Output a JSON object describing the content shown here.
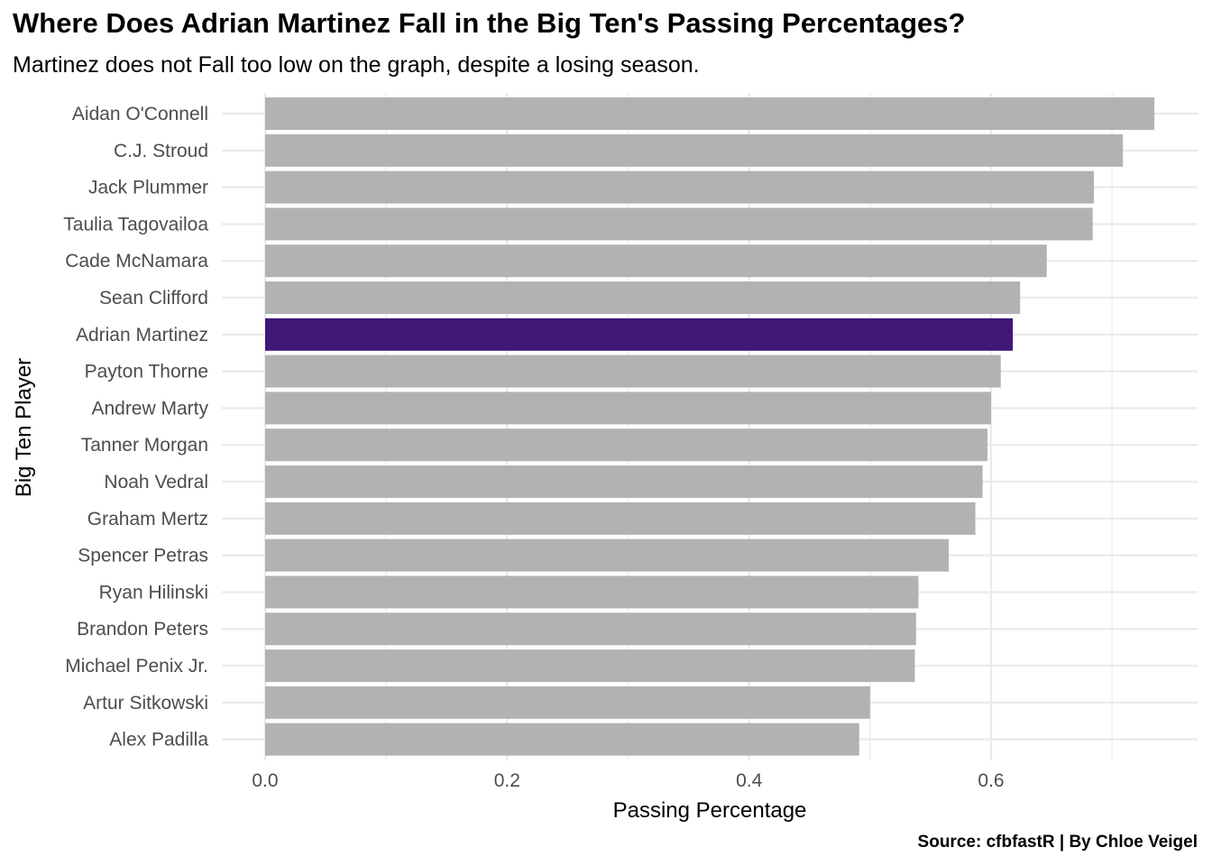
{
  "chart_data": {
    "type": "bar",
    "orientation": "horizontal",
    "title": "Where Does Adrian Martinez Fall in the Big Ten's Passing Percentages?",
    "subtitle": "Martinez does not Fall too low on the graph, despite a losing season.",
    "caption": "Source: cfbfastR | By Chloe Veigel",
    "xlabel": "Passing Percentage",
    "ylabel": "Big Ten Player",
    "xlim": [
      0,
      0.77
    ],
    "x_ticks": [
      "0.0",
      "0.2",
      "0.4",
      "0.6"
    ],
    "grid": true,
    "legend": "none",
    "highlight": "Adrian Martinez",
    "colors": {
      "bar": "#b2b2b2",
      "highlight": "#411877",
      "grid": "#ebebeb"
    },
    "categories": [
      "Aidan O'Connell",
      "C.J. Stroud",
      "Jack Plummer",
      "Taulia Tagovailoa",
      "Cade McNamara",
      "Sean Clifford",
      "Adrian Martinez",
      "Payton Thorne",
      "Andrew Marty",
      "Tanner Morgan",
      "Noah Vedral",
      "Graham Mertz",
      "Spencer Petras",
      "Ryan Hilinski",
      "Brandon Peters",
      "Michael Penix Jr.",
      "Artur Sitkowski",
      "Alex Padilla"
    ],
    "values": [
      0.735,
      0.709,
      0.685,
      0.684,
      0.646,
      0.624,
      0.618,
      0.608,
      0.6,
      0.597,
      0.593,
      0.587,
      0.565,
      0.54,
      0.538,
      0.537,
      0.5,
      0.491
    ]
  }
}
